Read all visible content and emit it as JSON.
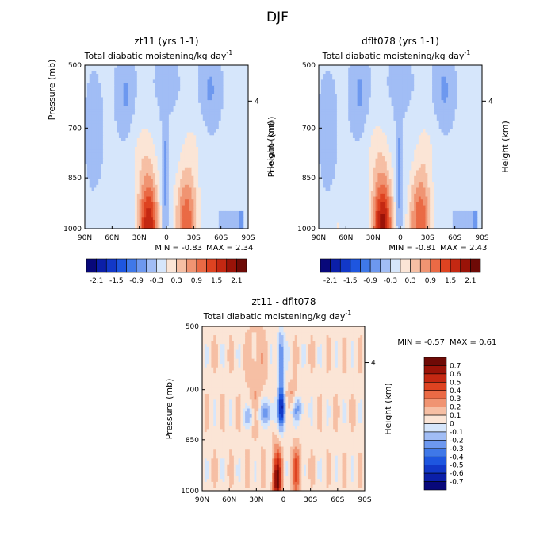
{
  "figure": {
    "title": "DJF"
  },
  "chart_data": [
    {
      "id": "panel-zt11",
      "type": "heatmap",
      "title": "zt11 (yrs 1-1)",
      "subtitle": "Total diabatic moistening/kg day",
      "subtitle_sup": "-1",
      "ylabel": "Pressure (mb)",
      "y2label": "Height (km)",
      "y2_ticks": [
        "4"
      ],
      "x_ticks": [
        "90N",
        "60N",
        "30N",
        "0",
        "30S",
        "60S",
        "90S"
      ],
      "y_ticks": [
        "500",
        "700",
        "850",
        "1000"
      ],
      "stats_min_label": "MIN =",
      "stats_min": "-0.83",
      "stats_max_label": "MAX =",
      "stats_max": "2.34",
      "colorbar_labels": [
        "-2.1",
        "-1.5",
        "-0.9",
        "-0.3",
        "0.3",
        "0.9",
        "1.5",
        "2.1"
      ],
      "levels": [
        -2.1,
        -1.8,
        -1.5,
        -1.2,
        -0.9,
        -0.6,
        -0.3,
        0,
        0.3,
        0.6,
        0.9,
        1.2,
        1.5,
        1.8,
        2.1
      ]
    },
    {
      "id": "panel-dflt078",
      "type": "heatmap",
      "title": "dflt078 (yrs 1-1)",
      "subtitle": "Total diabatic moistening/kg day",
      "subtitle_sup": "-1",
      "ylabel": "Pressure (mb)",
      "y2label": "Height (km)",
      "y2_ticks": [
        "4"
      ],
      "x_ticks": [
        "90N",
        "60N",
        "30N",
        "0",
        "30S",
        "60S",
        "90S"
      ],
      "y_ticks": [
        "500",
        "700",
        "850",
        "1000"
      ],
      "stats_min_label": "MIN =",
      "stats_min": "-0.81",
      "stats_max_label": "MAX =",
      "stats_max": "2.43",
      "colorbar_labels": [
        "-2.1",
        "-1.5",
        "-0.9",
        "-0.3",
        "0.3",
        "0.9",
        "1.5",
        "2.1"
      ],
      "levels": [
        -2.1,
        -1.8,
        -1.5,
        -1.2,
        -0.9,
        -0.6,
        -0.3,
        0,
        0.3,
        0.6,
        0.9,
        1.2,
        1.5,
        1.8,
        2.1
      ]
    },
    {
      "id": "panel-diff",
      "type": "heatmap",
      "title": "zt11 - dflt078",
      "subtitle": "Total diabatic moistening/kg day",
      "subtitle_sup": "-1",
      "ylabel": "Pressure (mb)",
      "y2label": "Height (km)",
      "y2_ticks": [
        "4"
      ],
      "x_ticks": [
        "90N",
        "60N",
        "30N",
        "0",
        "30S",
        "60S",
        "90S"
      ],
      "y_ticks": [
        "500",
        "700",
        "850",
        "1000"
      ],
      "stats_min_label": "MIN =",
      "stats_min": "-0.57",
      "stats_max_label": "MAX =",
      "stats_max": "0.61",
      "colorbar_labels": [
        "0.7",
        "0.6",
        "0.5",
        "0.4",
        "0.3",
        "0.2",
        "0.1",
        "0",
        "-0.1",
        "-0.2",
        "-0.3",
        "-0.4",
        "-0.5",
        "-0.6",
        "-0.7"
      ],
      "levels": [
        -0.7,
        -0.6,
        -0.5,
        -0.4,
        -0.3,
        -0.2,
        -0.1,
        0,
        0.1,
        0.2,
        0.3,
        0.4,
        0.5,
        0.6,
        0.7
      ]
    }
  ],
  "palette": [
    "#08087a",
    "#0b1fa8",
    "#1238c8",
    "#1e56df",
    "#3f78e8",
    "#6d98ef",
    "#a1bdf5",
    "#d6e6fb",
    "#fbe5d6",
    "#f6bfa4",
    "#f09472",
    "#ea6a45",
    "#de4321",
    "#c42812",
    "#9a1308",
    "#6e0a06"
  ]
}
